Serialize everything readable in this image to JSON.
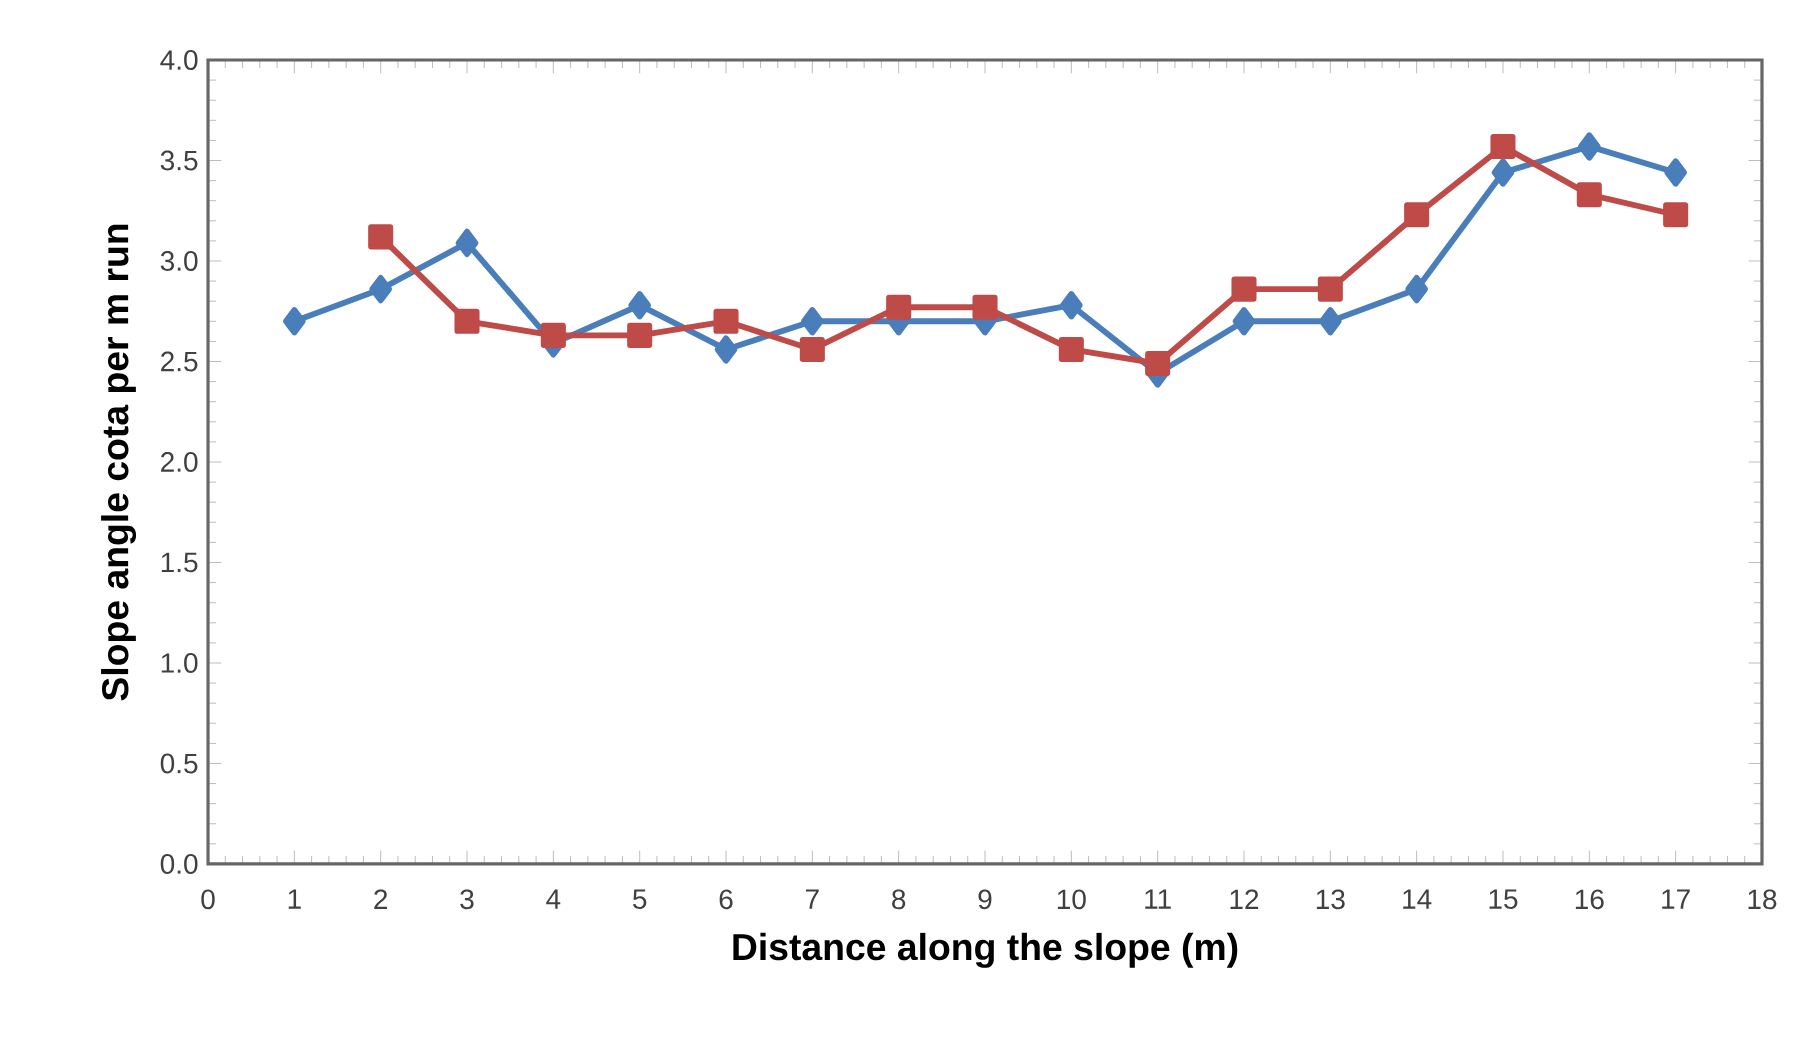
{
  "chart_data": {
    "type": "line",
    "xlabel": "Distance along the slope (m)",
    "ylabel": "Slope angle cota per m run",
    "xlim": [
      0,
      18
    ],
    "xticks": [
      0,
      1,
      2,
      3,
      4,
      5,
      6,
      7,
      8,
      9,
      10,
      11,
      12,
      13,
      14,
      15,
      16,
      17,
      18
    ],
    "ylim": [
      0,
      4
    ],
    "yticks": [
      {
        "value": 0,
        "label": "0.0"
      },
      {
        "value": 0.5,
        "label": "0.5"
      },
      {
        "value": 1,
        "label": "1.0"
      },
      {
        "value": 1.5,
        "label": "1.5"
      },
      {
        "value": 2,
        "label": "2.0"
      },
      {
        "value": 2.5,
        "label": "2.5"
      },
      {
        "value": 3,
        "label": "3.0"
      },
      {
        "value": 3.5,
        "label": "3.5"
      },
      {
        "value": 4,
        "label": "4.0"
      }
    ],
    "series": [
      {
        "color": "#4a7ebb",
        "marker": "diamond",
        "x": [
          1,
          2,
          3,
          4,
          5,
          6,
          7,
          8,
          9,
          10,
          11,
          12,
          13,
          14,
          15,
          16,
          17
        ],
        "values": [
          2.7,
          2.86,
          3.09,
          2.59,
          2.78,
          2.56,
          2.7,
          2.7,
          2.7,
          2.78,
          2.44,
          2.7,
          2.7,
          2.86,
          3.44,
          3.57,
          3.44
        ]
      },
      {
        "color": "#be4b48",
        "marker": "square",
        "x": [
          2,
          3,
          4,
          5,
          6,
          7,
          8,
          9,
          10,
          11,
          12,
          13,
          14,
          15,
          16,
          17
        ],
        "values": [
          3.12,
          2.7,
          2.63,
          2.63,
          2.7,
          2.56,
          2.77,
          2.77,
          2.56,
          2.49,
          2.86,
          2.86,
          3.23,
          3.57,
          3.33,
          3.23
        ]
      }
    ]
  }
}
